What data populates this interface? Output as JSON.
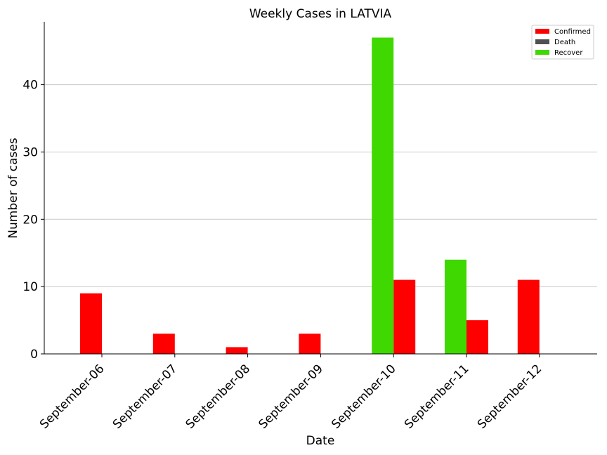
{
  "chart_data": {
    "type": "bar",
    "title": "Weekly Cases in LATVIA",
    "xlabel": "Date",
    "ylabel": "Number of cases",
    "categories": [
      "September-06",
      "September-07",
      "September-08",
      "September-09",
      "September-10",
      "September-11",
      "September-12"
    ],
    "series": [
      {
        "name": "Confirmed",
        "color": "#ff0000",
        "values": [
          9,
          3,
          1,
          3,
          11,
          5,
          11
        ]
      },
      {
        "name": "Death",
        "color": "#505050",
        "values": [
          0,
          0,
          0,
          0,
          0,
          0,
          0
        ]
      },
      {
        "name": "Recover",
        "color": "#3fd800",
        "values": [
          0,
          0,
          0,
          0,
          47,
          14,
          0
        ]
      }
    ],
    "yticks": [
      0,
      10,
      20,
      30,
      40
    ],
    "ylim": [
      0,
      49.35
    ],
    "grid": "horizontal",
    "legend_position": "top-right"
  }
}
